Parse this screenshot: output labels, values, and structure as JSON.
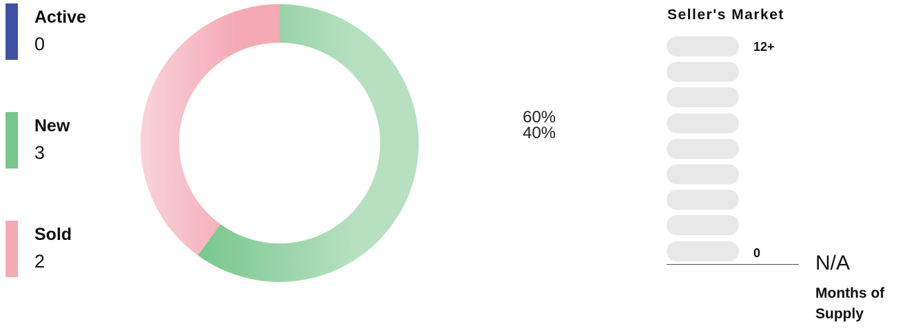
{
  "legend": [
    {
      "label": "Active",
      "count": "0",
      "color": "#3f51a3"
    },
    {
      "label": "New",
      "count": "3",
      "color": "#78c68e"
    },
    {
      "label": "Sold",
      "count": "2",
      "color": "#f4a9b5"
    }
  ],
  "chart_data": {
    "type": "pie",
    "variant": "donut",
    "categories": [
      "Active",
      "New",
      "Sold"
    ],
    "values": [
      0,
      3,
      2
    ],
    "percent_labels": [
      "60%",
      "40%"
    ],
    "colors": {
      "Active": "#3f51a3",
      "New": "#78c68e",
      "Sold": "#f4a9b5"
    }
  },
  "market": {
    "title": "Seller's Market",
    "scale_top": "12+",
    "scale_bottom": "0",
    "segments": 9,
    "value": "N/A",
    "label": "Months of Supply"
  }
}
